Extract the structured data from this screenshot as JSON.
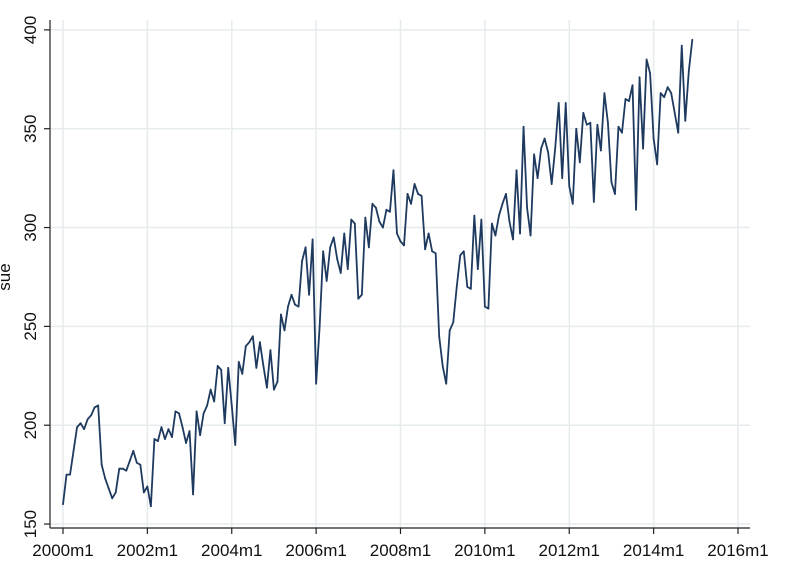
{
  "chart_data": {
    "type": "line",
    "ylabel": "sue",
    "xlabel": "",
    "x_start": "2000m1",
    "frequency": "monthly",
    "xlim": [
      "2000m1",
      "2016m1"
    ],
    "ylim": [
      148,
      405
    ],
    "x_ticks": [
      "2000m1",
      "2002m1",
      "2004m1",
      "2006m1",
      "2008m1",
      "2010m1",
      "2012m1",
      "2014m1",
      "2016m1"
    ],
    "y_ticks": [
      150,
      200,
      250,
      300,
      350,
      400
    ],
    "grid": true,
    "legend": "none",
    "series": [
      {
        "color": "#1f3a5f",
        "values": [
          160,
          175,
          175,
          187,
          199,
          201,
          198,
          203,
          205,
          209,
          210,
          180,
          173,
          168,
          163,
          166,
          178,
          178,
          177,
          182,
          187,
          181,
          180,
          166,
          169,
          159,
          193,
          192,
          199,
          193,
          198,
          194,
          207,
          206,
          199,
          191,
          197,
          165,
          207,
          195,
          206,
          210,
          218,
          212,
          230,
          228,
          201,
          229,
          210,
          190,
          232,
          226,
          240,
          242,
          245,
          229,
          242,
          230,
          219,
          238,
          218,
          222,
          256,
          248,
          260,
          266,
          261,
          260,
          283,
          290,
          266,
          294,
          221,
          250,
          288,
          273,
          290,
          295,
          284,
          277,
          297,
          279,
          304,
          302,
          264,
          266,
          305,
          290,
          312,
          310,
          303,
          300,
          309,
          308,
          329,
          297,
          293,
          291,
          317,
          312,
          322,
          317,
          316,
          289,
          297,
          288,
          287,
          245,
          230,
          221,
          248,
          252,
          270,
          286,
          288,
          270,
          269,
          306,
          279,
          304,
          260,
          259,
          302,
          296,
          306,
          312,
          317,
          303,
          294,
          329,
          297,
          351,
          310,
          296,
          337,
          325,
          340,
          345,
          338,
          322,
          340,
          363,
          325,
          363,
          321,
          312,
          350,
          333,
          358,
          352,
          353,
          313,
          352,
          339,
          368,
          353,
          323,
          317,
          351,
          348,
          365,
          364,
          372,
          309,
          376,
          340,
          385,
          378,
          345,
          332,
          368,
          366,
          371,
          368,
          358,
          348,
          392,
          354,
          379,
          395
        ]
      }
    ]
  }
}
